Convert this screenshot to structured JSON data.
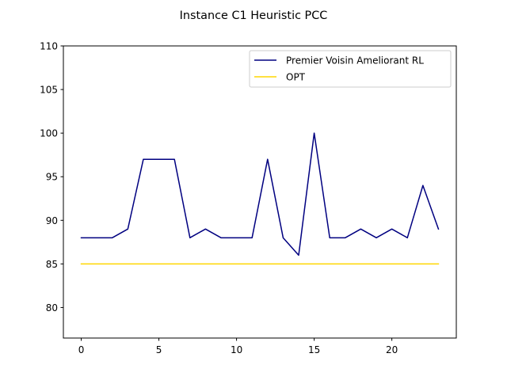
{
  "chart_data": {
    "type": "line",
    "title": "Instance C1 Heuristic PCC",
    "xlabel": "",
    "ylabel": "",
    "xlim": [
      -1.15,
      24.15
    ],
    "ylim": [
      76.5,
      110
    ],
    "x_ticks": [
      0,
      5,
      10,
      15,
      20
    ],
    "y_ticks": [
      80,
      85,
      90,
      95,
      100,
      105,
      110
    ],
    "grid": false,
    "legend_position": "upper right",
    "x": [
      0,
      1,
      2,
      3,
      4,
      5,
      6,
      7,
      8,
      9,
      10,
      11,
      12,
      13,
      14,
      15,
      16,
      17,
      18,
      19,
      20,
      21,
      22,
      23
    ],
    "series": [
      {
        "name": "Premier Voisin Ameliorant RL",
        "color": "#000080",
        "values": [
          88,
          88,
          88,
          89,
          97,
          97,
          97,
          88,
          89,
          88,
          88,
          88,
          97,
          88,
          86,
          100,
          88,
          88,
          89,
          88,
          89,
          88,
          94,
          89
        ]
      },
      {
        "name": "OPT",
        "color": "#FFD700",
        "values": [
          85,
          85,
          85,
          85,
          85,
          85,
          85,
          85,
          85,
          85,
          85,
          85,
          85,
          85,
          85,
          85,
          85,
          85,
          85,
          85,
          85,
          85,
          85,
          85
        ]
      }
    ]
  }
}
